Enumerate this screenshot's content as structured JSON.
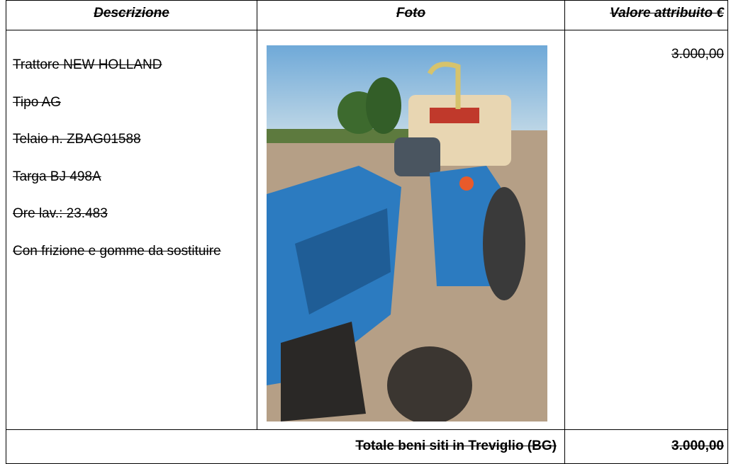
{
  "table": {
    "header": [
      "Descrizione",
      "Foto",
      "Valore attribuito €"
    ],
    "rows": [
      {
        "description": [
          "Trattore NEW HOLLAND",
          "Tipo AG",
          "Telaio n. ZBAG01588",
          "Targa BJ 498A",
          "Ore lav.: 23.483",
          "Con frizione e gomme da sostituire"
        ],
        "value": "3.000,00"
      }
    ],
    "total": {
      "label": "Totale beni siti in Treviglio (BG)",
      "value": "3.000,00"
    }
  }
}
